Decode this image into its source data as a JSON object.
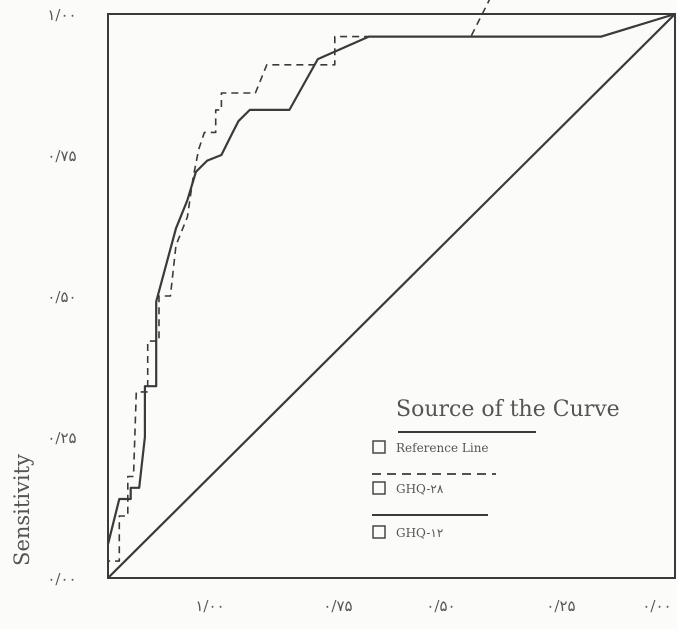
{
  "chart_data": {
    "type": "line",
    "ylabel": "Sensitivity",
    "xlabel": "",
    "xlim": [
      1.0,
      0.0
    ],
    "ylim": [
      0.0,
      1.0
    ],
    "x_ticks": [
      {
        "value": 1.0,
        "label": "۱/۰۰"
      },
      {
        "value": 0.75,
        "label": "۰/۷۵"
      },
      {
        "value": 0.5,
        "label": "۰/۵۰"
      },
      {
        "value": 0.25,
        "label": "۰/۲۵"
      },
      {
        "value": 0.0,
        "label": "۰/۰۰"
      }
    ],
    "y_ticks": [
      {
        "value": 0.0,
        "label": "۰/۰۰"
      },
      {
        "value": 0.25,
        "label": "۰/۲۵"
      },
      {
        "value": 0.5,
        "label": "۰/۵۰"
      },
      {
        "value": 0.75,
        "label": "۰/۷۵"
      },
      {
        "value": 1.0,
        "label": "۱/۰۰"
      }
    ],
    "legend": {
      "title": "Source of the Curve",
      "position": "bottom-right",
      "entries": [
        {
          "label": "Reference Line",
          "line": "solid"
        },
        {
          "label": "GHQ-۲۸",
          "line": "dashed"
        },
        {
          "label": "GHQ-۱۲",
          "line": "solid"
        }
      ]
    },
    "series": [
      {
        "name": "Reference Line",
        "style": "solid",
        "points": [
          [
            0.0,
            0.0
          ],
          [
            1.0,
            1.0
          ]
        ]
      },
      {
        "name": "GHQ-۲۸",
        "style": "dashed",
        "points": [
          [
            0.0,
            0.0
          ],
          [
            0.0,
            0.03
          ],
          [
            0.02,
            0.03
          ],
          [
            0.02,
            0.11
          ],
          [
            0.035,
            0.11
          ],
          [
            0.035,
            0.18
          ],
          [
            0.045,
            0.18
          ],
          [
            0.05,
            0.33
          ],
          [
            0.07,
            0.33
          ],
          [
            0.07,
            0.42
          ],
          [
            0.09,
            0.42
          ],
          [
            0.09,
            0.5
          ],
          [
            0.11,
            0.5
          ],
          [
            0.12,
            0.59
          ],
          [
            0.14,
            0.64
          ],
          [
            0.15,
            0.71
          ],
          [
            0.16,
            0.76
          ],
          [
            0.17,
            0.79
          ],
          [
            0.19,
            0.79
          ],
          [
            0.19,
            0.83
          ],
          [
            0.2,
            0.83
          ],
          [
            0.2,
            0.86
          ],
          [
            0.26,
            0.86
          ],
          [
            0.28,
            0.91
          ],
          [
            0.4,
            0.91
          ],
          [
            0.4,
            0.96
          ],
          [
            0.64,
            0.96
          ],
          [
            0.68,
            1.04
          ]
        ]
      },
      {
        "name": "GHQ-۱۲",
        "style": "solid",
        "points": [
          [
            0.0,
            0.06
          ],
          [
            0.02,
            0.14
          ],
          [
            0.04,
            0.14
          ],
          [
            0.04,
            0.16
          ],
          [
            0.055,
            0.16
          ],
          [
            0.065,
            0.25
          ],
          [
            0.065,
            0.34
          ],
          [
            0.085,
            0.34
          ],
          [
            0.085,
            0.49
          ],
          [
            0.12,
            0.62
          ],
          [
            0.14,
            0.67
          ],
          [
            0.155,
            0.72
          ],
          [
            0.175,
            0.74
          ],
          [
            0.2,
            0.75
          ],
          [
            0.22,
            0.79
          ],
          [
            0.23,
            0.81
          ],
          [
            0.25,
            0.83
          ],
          [
            0.32,
            0.83
          ],
          [
            0.37,
            0.92
          ],
          [
            0.46,
            0.96
          ],
          [
            0.87,
            0.96
          ],
          [
            1.0,
            1.0
          ]
        ]
      }
    ]
  }
}
